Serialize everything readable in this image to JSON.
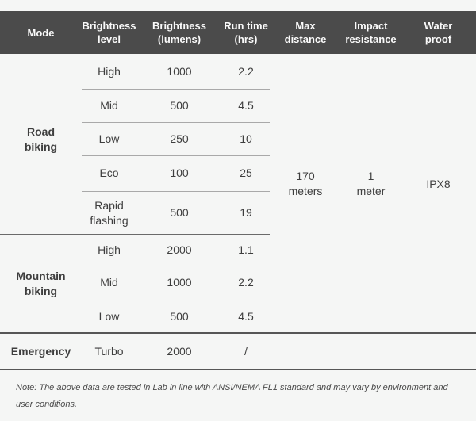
{
  "header": {
    "columns": [
      {
        "label": "Mode"
      },
      {
        "label": "Brightness level"
      },
      {
        "label": "Brightness (lumens)"
      },
      {
        "label": "Run time (hrs)"
      },
      {
        "label": "Max distance"
      },
      {
        "label": "Impact resistance"
      },
      {
        "label": "Water proof"
      }
    ]
  },
  "sections": [
    {
      "mode": "Road biking",
      "rows": [
        {
          "level": "High",
          "lumens": "1000",
          "runtime": "2.2"
        },
        {
          "level": "Mid",
          "lumens": "500",
          "runtime": "4.5"
        },
        {
          "level": "Low",
          "lumens": "250",
          "runtime": "10"
        },
        {
          "level": "Eco",
          "lumens": "100",
          "runtime": "25"
        },
        {
          "level": "Rapid flashing",
          "lumens": "500",
          "runtime": "19"
        }
      ]
    },
    {
      "mode": "Mountain biking",
      "rows": [
        {
          "level": "High",
          "lumens": "2000",
          "runtime": "1.1"
        },
        {
          "level": "Mid",
          "lumens": "1000",
          "runtime": "2.2"
        },
        {
          "level": "Low",
          "lumens": "500",
          "runtime": "4.5"
        }
      ]
    },
    {
      "mode": "Emergency",
      "rows": [
        {
          "level": "Turbo",
          "lumens": "2000",
          "runtime": "/"
        }
      ]
    }
  ],
  "shared": {
    "max_distance": "170 meters",
    "impact_resistance": "1 meter",
    "water_proof": "IPX8"
  },
  "note": {
    "text": "Note: The above data are tested in Lab in line with ANSI/NEMA FL1 standard and may vary by environment and user conditions."
  },
  "colors": {
    "background": "#f5f6f5",
    "header_background": "#4b4b4b",
    "header_text": "#fafafa",
    "body_text": "#3e3e3e",
    "divider_light": "#a9a9a9",
    "divider_medium": "#6a6a6a",
    "divider_dark": "#565656",
    "note_text": "#4a4a4a"
  }
}
